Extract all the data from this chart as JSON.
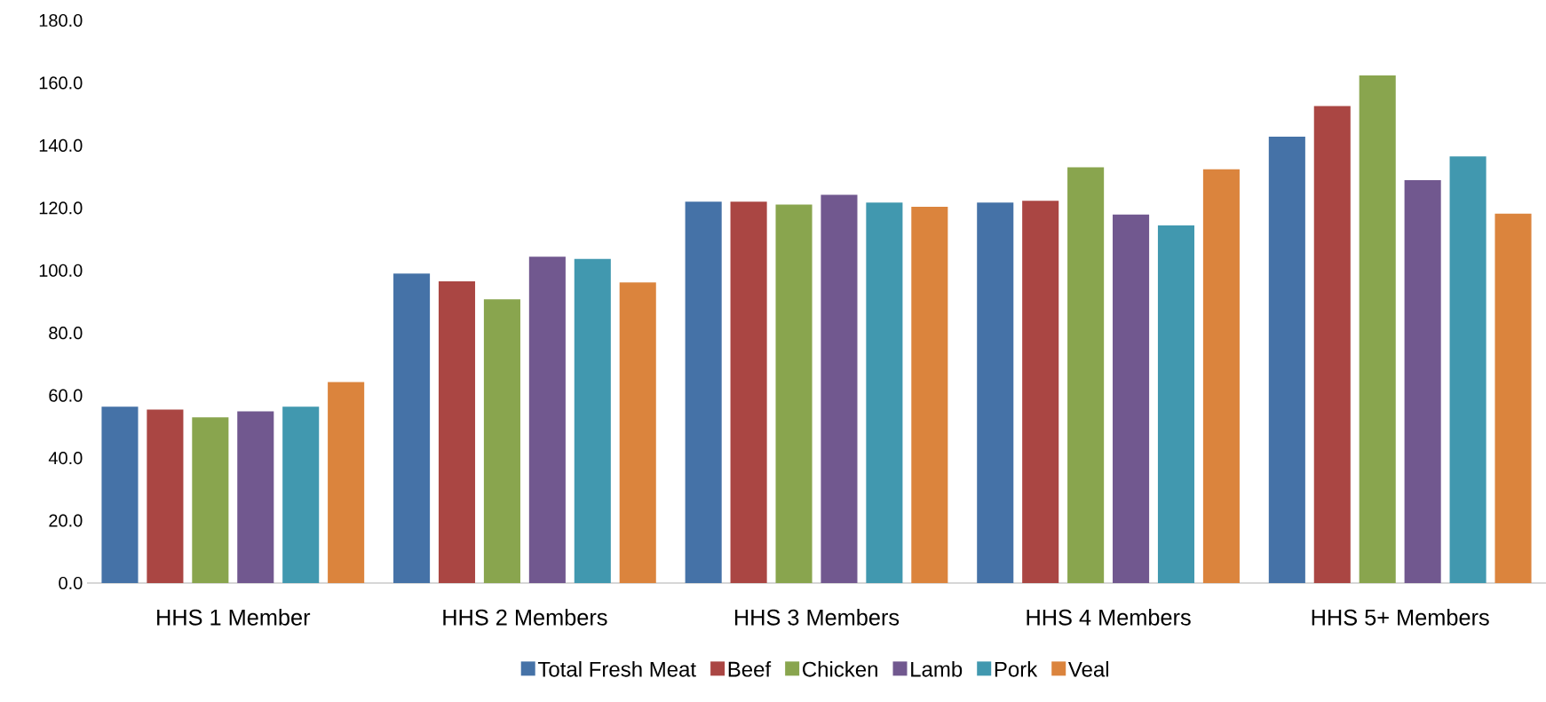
{
  "chart_data": {
    "type": "bar",
    "categories": [
      "HHS 1 Member",
      "HHS 2 Members",
      "HHS 3 Members",
      "HHS 4 Members",
      "HHS 5+ Members"
    ],
    "series": [
      {
        "name": "Total Fresh Meat",
        "color": "#4572a7",
        "values": [
          56.4,
          99.0,
          122.0,
          121.7,
          142.8
        ]
      },
      {
        "name": "Beef",
        "color": "#aa4643",
        "values": [
          55.5,
          96.5,
          122.0,
          122.3,
          152.6
        ]
      },
      {
        "name": "Chicken",
        "color": "#89a54e",
        "values": [
          53.0,
          90.8,
          121.1,
          133.0,
          162.4
        ]
      },
      {
        "name": "Lamb",
        "color": "#71588f",
        "values": [
          54.9,
          104.4,
          124.2,
          117.9,
          128.9
        ]
      },
      {
        "name": "Pork",
        "color": "#4198af",
        "values": [
          56.4,
          103.7,
          121.7,
          114.4,
          136.5
        ]
      },
      {
        "name": "Veal",
        "color": "#db843d",
        "values": [
          64.3,
          96.2,
          120.4,
          132.4,
          118.2
        ]
      }
    ],
    "ylim": [
      0,
      180
    ],
    "yticks": [
      {
        "value": 0,
        "label": "0.0"
      },
      {
        "value": 20,
        "label": "20.0"
      },
      {
        "value": 40,
        "label": "40.0"
      },
      {
        "value": 60,
        "label": "60.0"
      },
      {
        "value": 80,
        "label": "80.0"
      },
      {
        "value": 100,
        "label": "100.0"
      },
      {
        "value": 120,
        "label": "120.0"
      },
      {
        "value": 140,
        "label": "140.0"
      },
      {
        "value": 160,
        "label": "160.0"
      },
      {
        "value": 180,
        "label": "180.0"
      }
    ],
    "grid": false,
    "legend": "bottom"
  }
}
